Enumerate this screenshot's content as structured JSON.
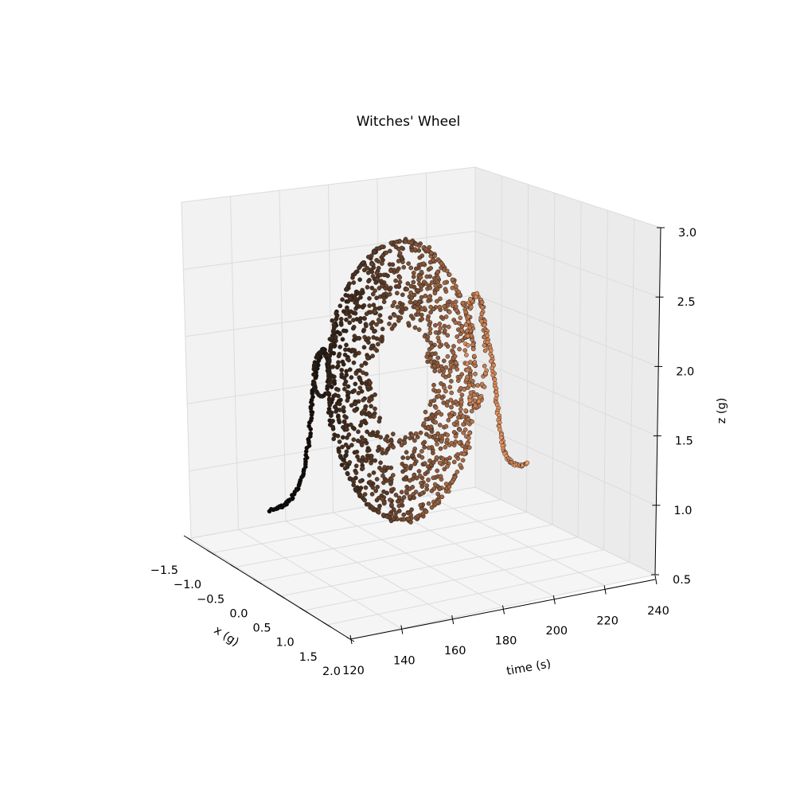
{
  "chart_data": {
    "type": "scatter",
    "projection": "3d",
    "title": "Witches' Wheel",
    "xlabel": "x (g)",
    "ylabel": "time (s)",
    "zlabel": "z (g)",
    "x_ticks": [
      "−1.5",
      "−1.0",
      "−0.5",
      "0.0",
      "0.5",
      "1.0",
      "1.5",
      "2.0"
    ],
    "time_ticks": [
      "120",
      "140",
      "160",
      "180",
      "200",
      "220",
      "240"
    ],
    "z_ticks": [
      "0.5",
      "1.0",
      "1.5",
      "2.0",
      "2.5",
      "3.0"
    ],
    "xlim": [
      -1.5,
      2.0
    ],
    "timelim": [
      120,
      240
    ],
    "zlim": [
      0.5,
      3.0
    ],
    "grid": true,
    "colormap": "copper",
    "colormap_start": "#000000",
    "colormap_end": "#ffa066",
    "point_edge_color": "#222222",
    "series": [
      {
        "description": "lead-in trail",
        "x": [
          0.0,
          0.0,
          0.0,
          0.0,
          0.0,
          0.0,
          0.0,
          0.0,
          0.0
        ],
        "time": [
          124,
          128,
          131,
          134,
          137,
          140,
          143,
          146,
          149
        ],
        "z": [
          1.0,
          1.0,
          1.1,
          1.3,
          1.6,
          1.9,
          2.1,
          2.2,
          2.15
        ]
      },
      {
        "description": "wheel",
        "x_range": [
          -1.0,
          1.0
        ],
        "time_range": [
          150,
          210
        ],
        "z_range": [
          0.95,
          2.95
        ]
      },
      {
        "description": "exit trail",
        "x": [
          0.0,
          0.0,
          0.0,
          0.0,
          0.0,
          0.0,
          0.0,
          0.0
        ],
        "time": [
          211,
          214,
          217,
          220,
          223,
          226,
          229,
          232
        ],
        "z": [
          2.2,
          2.3,
          2.1,
          1.8,
          1.5,
          1.35,
          1.3,
          1.3
        ]
      }
    ]
  }
}
